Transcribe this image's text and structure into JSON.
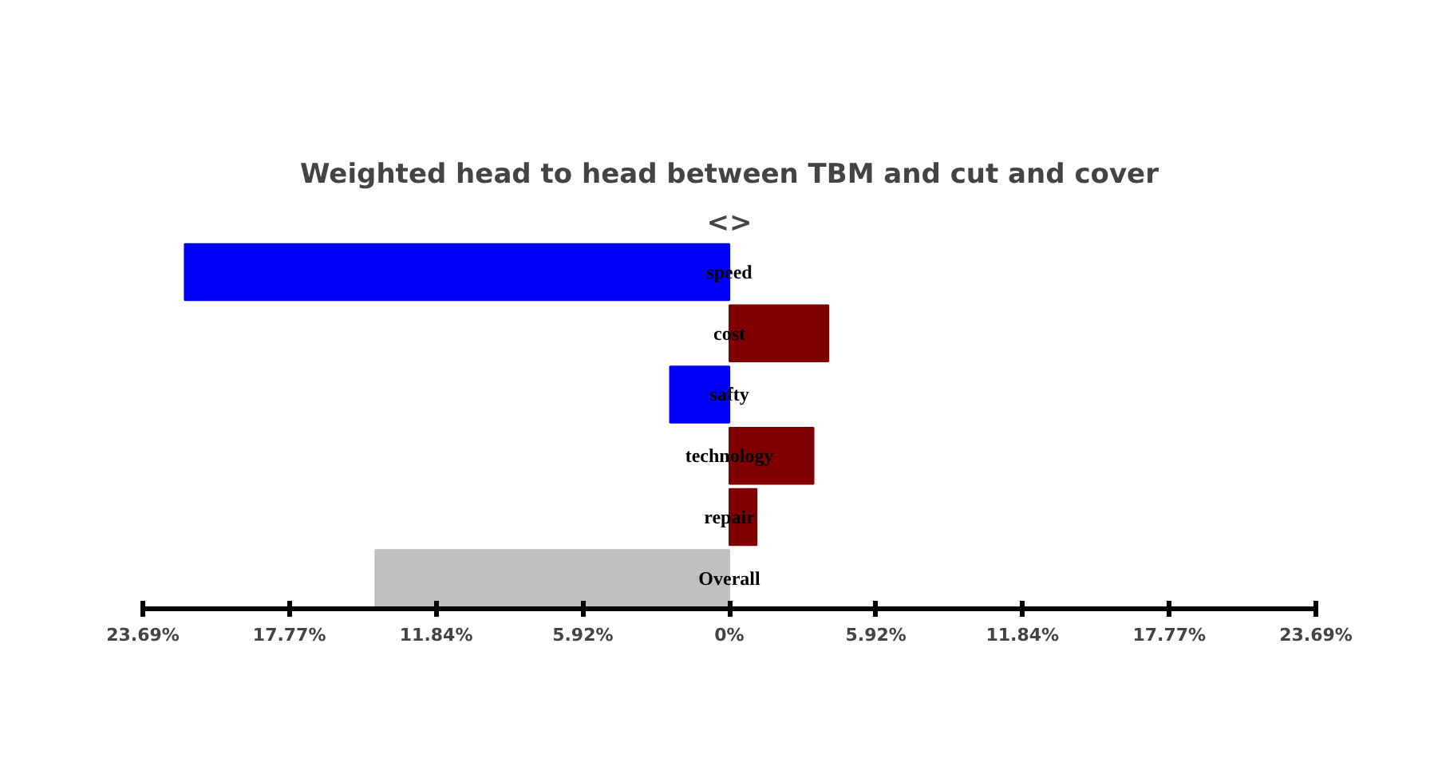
{
  "chart_data": {
    "type": "bar",
    "orientation": "horizontal",
    "title": "Weighted head to head between TBM and cut and cover",
    "annotations": [
      "<>"
    ],
    "categories": [
      "speed",
      "cost",
      "safty",
      "technology",
      "repair",
      "Overall"
    ],
    "values": [
      -22.0,
      4.0,
      -2.4,
      3.4,
      1.1,
      -14.3
    ],
    "colors": [
      "#0000ff",
      "#800000",
      "#0000ff",
      "#800000",
      "#800000",
      "#c0c0c0"
    ],
    "xlim": [
      -23.69,
      23.69
    ],
    "xticks": [
      {
        "value": -23.69,
        "label": "23.69%"
      },
      {
        "value": -17.77,
        "label": "17.77%"
      },
      {
        "value": -11.84,
        "label": "11.84%"
      },
      {
        "value": -5.92,
        "label": "5.92%"
      },
      {
        "value": 0,
        "label": "0%"
      },
      {
        "value": 5.92,
        "label": "5.92%"
      },
      {
        "value": 11.84,
        "label": "11.84%"
      },
      {
        "value": 17.77,
        "label": "17.77%"
      },
      {
        "value": 23.69,
        "label": "23.69%"
      }
    ],
    "grid": false
  }
}
